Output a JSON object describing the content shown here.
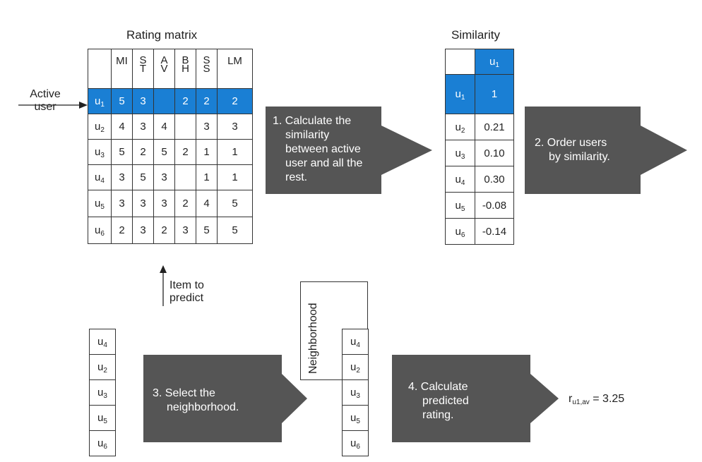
{
  "rating_matrix": {
    "title": "Rating matrix",
    "columns": [
      "MI",
      "S\nT",
      "A\nV",
      "B\nH",
      "S\nS",
      "LM"
    ],
    "column_tops": [
      "MI",
      "S",
      "A",
      "B",
      "S",
      "LM"
    ],
    "column_bottoms": [
      "",
      "T",
      "V",
      "H",
      "S",
      ""
    ],
    "rows": [
      {
        "user": "u",
        "sub": "1",
        "cells": [
          "5",
          "3",
          "",
          "2",
          "2",
          "2"
        ]
      },
      {
        "user": "u",
        "sub": "2",
        "cells": [
          "4",
          "3",
          "4",
          "",
          "3",
          "3"
        ]
      },
      {
        "user": "u",
        "sub": "3",
        "cells": [
          "5",
          "2",
          "5",
          "2",
          "1",
          "1"
        ]
      },
      {
        "user": "u",
        "sub": "4",
        "cells": [
          "3",
          "5",
          "3",
          "",
          "1",
          "1"
        ]
      },
      {
        "user": "u",
        "sub": "5",
        "cells": [
          "3",
          "3",
          "3",
          "2",
          "4",
          "5"
        ]
      },
      {
        "user": "u",
        "sub": "6",
        "cells": [
          "2",
          "3",
          "2",
          "3",
          "5",
          "5"
        ]
      }
    ]
  },
  "labels": {
    "active_user_line1": "Active",
    "active_user_line2": "user",
    "item_to_predict_line1": "Item to",
    "item_to_predict_line2": "predict"
  },
  "steps": {
    "step1": [
      "1. Calculate the",
      "similarity",
      "between active",
      "user and all the",
      "rest."
    ],
    "step2": [
      "2. Order users",
      "by similarity."
    ],
    "step3": [
      "3. Select the",
      "neighborhood."
    ],
    "step4": [
      "4. Calculate",
      "predicted",
      "rating."
    ]
  },
  "similarity": {
    "title": "Similarity",
    "header_user": "u",
    "header_sub": "1",
    "rows": [
      {
        "user": "u",
        "sub": "1",
        "value": "1"
      },
      {
        "user": "u",
        "sub": "2",
        "value": "0.21"
      },
      {
        "user": "u",
        "sub": "3",
        "value": "0.10"
      },
      {
        "user": "u",
        "sub": "4",
        "value": "0.30"
      },
      {
        "user": "u",
        "sub": "5",
        "value": "-0.08"
      },
      {
        "user": "u",
        "sub": "6",
        "value": "-0.14"
      }
    ]
  },
  "ordered_users": [
    {
      "user": "u",
      "sub": "4"
    },
    {
      "user": "u",
      "sub": "2"
    },
    {
      "user": "u",
      "sub": "3"
    },
    {
      "user": "u",
      "sub": "5"
    },
    {
      "user": "u",
      "sub": "6"
    }
  ],
  "neighborhood": {
    "label": "Neighborhood",
    "users": [
      {
        "user": "u",
        "sub": "4"
      },
      {
        "user": "u",
        "sub": "2"
      },
      {
        "user": "u",
        "sub": "3"
      },
      {
        "user": "u",
        "sub": "5"
      },
      {
        "user": "u",
        "sub": "6"
      }
    ]
  },
  "result": {
    "symbol": "r",
    "sub": "u1,av",
    "value": "= 3.25"
  },
  "colors": {
    "highlight": "#1a7fd4",
    "arrow": "#555555"
  }
}
